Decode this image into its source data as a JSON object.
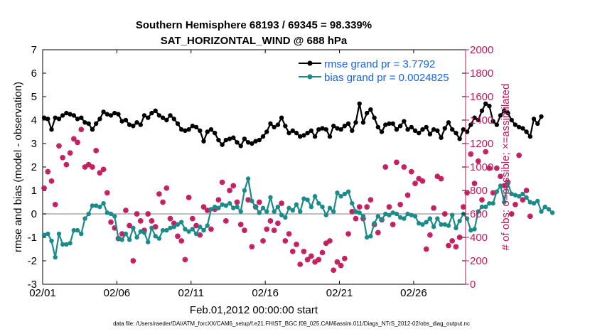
{
  "chart_data": {
    "type": "line",
    "title": "Southern Hemisphere 68193 / 69345 = 98.339%",
    "subtitle": "SAT_HORIZONTAL_WIND @ 688 hPa",
    "xlabel": "Feb.01,2012 00:00:00 start",
    "ylabel": "rmse and bias (model - observation)",
    "y2label": "# of obs: o=possible; ×=assimilated",
    "x_tick_labels": [
      "02/01",
      "02/06",
      "02/11",
      "02/16",
      "02/21",
      "02/26"
    ],
    "x_tick_days": [
      0,
      5,
      10,
      15,
      20,
      25
    ],
    "xlim": [
      0,
      28.5
    ],
    "ylim": [
      -3,
      7
    ],
    "y_ticks": [
      "-3",
      "-2",
      "-1",
      "0",
      "1",
      "2",
      "3",
      "4",
      "5",
      "6",
      "7"
    ],
    "y2lim": [
      0,
      2000
    ],
    "y2_ticks": [
      "0",
      "200",
      "400",
      "600",
      "800",
      "1000",
      "1200",
      "1400",
      "1600",
      "1800",
      "2000"
    ],
    "step_days": 0.25,
    "legend_position": "top-right",
    "series": [
      {
        "name": "rmse grand pr = 3.7792",
        "color": "#000000",
        "axis": "left",
        "values": [
          4.1,
          4.05,
          3.6,
          4.1,
          4.05,
          4.2,
          4.3,
          4.25,
          4.2,
          4.05,
          4.1,
          3.9,
          3.85,
          3.6,
          3.85,
          4.05,
          4.35,
          4.25,
          4.2,
          4.3,
          4.25,
          3.95,
          4.0,
          3.8,
          3.75,
          3.9,
          3.8,
          4.2,
          4.1,
          4.3,
          4.4,
          4.2,
          4.1,
          4.0,
          4.2,
          4.05,
          3.85,
          3.6,
          3.55,
          3.6,
          3.75,
          3.7,
          3.55,
          3.1,
          3.5,
          3.6,
          3.45,
          3.15,
          2.95,
          3.15,
          3.2,
          3.25,
          3.05,
          2.9,
          3.2,
          3.05,
          3.0,
          3.1,
          3.15,
          3.3,
          3.5,
          3.85,
          3.7,
          3.8,
          4.1,
          3.75,
          3.45,
          3.55,
          3.45,
          3.3,
          3.35,
          3.45,
          3.55,
          3.3,
          3.6,
          3.65,
          3.6,
          3.3,
          3.75,
          3.65,
          3.6,
          3.75,
          3.85,
          3.55,
          3.9,
          4.7,
          3.9,
          4.3,
          4.45,
          4.1,
          3.7,
          3.5,
          3.8,
          3.85,
          3.85,
          3.6,
          3.75,
          3.95,
          3.6,
          3.7,
          3.55,
          3.45,
          3.6,
          3.7,
          3.4,
          3.6,
          3.55,
          3.25,
          3.65,
          3.9,
          3.6,
          3.45,
          3.2,
          3.6,
          3.5,
          3.8,
          4.1,
          4.0,
          4.4,
          4.7,
          4.6,
          3.95,
          3.8,
          4.2,
          4.4,
          4.3,
          4.0,
          3.8,
          3.7,
          3.65,
          3.5,
          3.3,
          4.05,
          3.85,
          4.15
        ]
      },
      {
        "name": "bias grand pr = 0.0024825",
        "color": "#1a8a8a",
        "axis": "left",
        "values": [
          -0.9,
          -0.85,
          -1.15,
          -1.85,
          -0.85,
          -1.3,
          -1.3,
          -1.25,
          -0.7,
          -0.7,
          -0.85,
          -0.2,
          0.0,
          0.35,
          0.35,
          0.3,
          0.45,
          0.05,
          0.0,
          -0.1,
          -1.05,
          -1.1,
          -0.85,
          -1.1,
          -0.6,
          -1.0,
          -0.75,
          -0.8,
          -1.2,
          -0.6,
          -0.95,
          -1.05,
          -0.7,
          -0.7,
          -0.6,
          -0.55,
          -0.45,
          -0.35,
          -0.65,
          -0.75,
          -0.65,
          -0.85,
          -0.55,
          -0.7,
          -0.5,
          0.2,
          0.3,
          0.25,
          0.4,
          0.35,
          0.45,
          0.25,
          0.3,
          0.1,
          1.0,
          1.5,
          0.55,
          0.3,
          0.05,
          0.25,
          0.1,
          0.7,
          0.1,
          0.3,
          -0.05,
          -0.15,
          0.25,
          0.15,
          0.4,
          0.1,
          0.65,
          0.6,
          0.3,
          0.75,
          0.45,
          0.3,
          -0.05,
          0.25,
          0.1,
          0.9,
          0.75,
          0.85,
          0.95,
          0.45,
          0.1,
          0.05,
          -0.1,
          -1.0,
          -0.95,
          -0.4,
          -0.1,
          -0.25,
          0.0,
          -0.05,
          0.05,
          0.0,
          -0.15,
          -0.2,
          0.0,
          -0.05,
          -0.1,
          -0.4,
          -0.45,
          -0.35,
          -0.2,
          -0.55,
          -0.2,
          -0.45,
          -0.45,
          -0.5,
          -0.05,
          -0.6,
          -0.3,
          0.0,
          -0.2,
          -0.7,
          -0.65,
          0.1,
          0.3,
          0.3,
          0.45,
          0.45,
          0.95,
          1.2,
          0.5,
          1.3,
          0.85,
          0.8,
          0.75,
          0.85,
          0.7,
          0.5,
          0.45,
          0.55,
          0.1,
          0.3,
          0.2,
          0.05
        ]
      }
    ],
    "obs_counts": {
      "name": "# of obs",
      "color": "#c2185b",
      "axis": "right",
      "values": [
        820,
        960,
        880,
        680,
        1180,
        1080,
        1020,
        1120,
        1240,
        1210,
        1320,
        1000,
        1020,
        1000,
        1140,
        950,
        980,
        780,
        530,
        480,
        390,
        430,
        630,
        500,
        200,
        600,
        540,
        460,
        600,
        540,
        490,
        770,
        700,
        820,
        560,
        520,
        410,
        370,
        210,
        740,
        560,
        500,
        420,
        660,
        630,
        470,
        640,
        720,
        870,
        540,
        800,
        840,
        700,
        510,
        460,
        720,
        320,
        660,
        700,
        370,
        470,
        540,
        460,
        520,
        690,
        370,
        430,
        280,
        340,
        170,
        280,
        210,
        240,
        190,
        210,
        270,
        350,
        370,
        120,
        190,
        160,
        220,
        430,
        620,
        560,
        660,
        560,
        660,
        720,
        510,
        440,
        550,
        1000,
        660,
        510,
        1040,
        680,
        1000,
        760,
        960,
        860,
        900,
        880,
        300,
        420,
        650,
        920,
        900,
        600,
        330,
        370,
        320,
        400,
        660,
        780,
        1110,
        860,
        1050,
        720,
        1130,
        990,
        780,
        990,
        920,
        840,
        870,
        600,
        680,
        1100,
        720,
        800,
        580
      ]
    }
  },
  "footer": "data file: /Users/raeder/DAI/ATM_forcXX/CAM6_setup/f.e21.FHIST_BGC.f09_025.CAM6assim.011/Diags_NTrS_2012-02/obs_diag_output.nc"
}
